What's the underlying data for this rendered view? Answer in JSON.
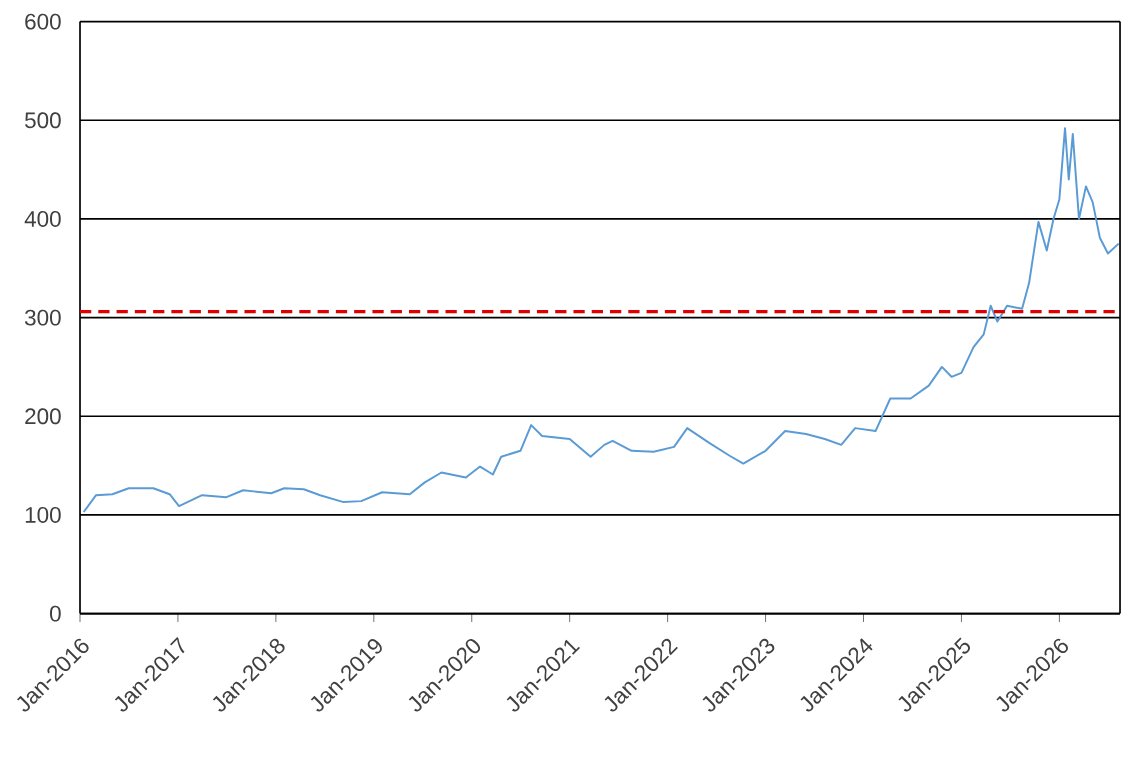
{
  "chart_data": {
    "type": "line",
    "x": [
      "2016-01-15",
      "2016-03-01",
      "2016-05-01",
      "2016-07-01",
      "2016-10-01",
      "2016-12-01",
      "2017-01-05",
      "2017-04-01",
      "2017-07-01",
      "2017-09-01",
      "2017-12-15",
      "2018-02-01",
      "2018-04-15",
      "2018-06-15",
      "2018-09-10",
      "2018-11-15",
      "2019-02-01",
      "2019-05-15",
      "2019-07-10",
      "2019-09-10",
      "2019-12-10",
      "2020-02-01",
      "2020-03-20",
      "2020-04-20",
      "2020-07-01",
      "2020-08-10",
      "2020-09-20",
      "2021-01-01",
      "2021-03-20",
      "2021-05-10",
      "2021-06-10",
      "2021-08-20",
      "2021-11-10",
      "2022-01-25",
      "2022-03-15",
      "2022-06-05",
      "2022-08-20",
      "2022-10-10",
      "2023-01-01",
      "2023-03-15",
      "2023-06-01",
      "2023-08-10",
      "2023-10-10",
      "2023-12-01",
      "2024-02-15",
      "2024-04-10",
      "2024-06-25",
      "2024-09-01",
      "2024-10-20",
      "2024-11-25",
      "2025-01-01",
      "2025-02-15",
      "2025-03-25",
      "2025-04-20",
      "2025-05-15",
      "2025-06-20",
      "2025-08-15",
      "2025-09-10",
      "2025-10-15",
      "2025-11-15",
      "2025-12-10",
      "2026-01-01",
      "2026-01-22",
      "2026-02-05",
      "2026-02-20",
      "2026-03-15",
      "2026-04-10",
      "2026-05-05",
      "2026-06-01",
      "2026-07-01",
      "2026-08-10"
    ],
    "series": [
      {
        "color": "#5b9bd5",
        "values": [
          103,
          120,
          121,
          127,
          127,
          121,
          109,
          120,
          118,
          125,
          122,
          127,
          126,
          120,
          113,
          114,
          123,
          121,
          133,
          143,
          138,
          149,
          141,
          159,
          165,
          191,
          180,
          177,
          159,
          171,
          175,
          165,
          164,
          169,
          188,
          173,
          160,
          152,
          165,
          185,
          182,
          177,
          171,
          188,
          185,
          218,
          218,
          231,
          250,
          240,
          244,
          270,
          283,
          312,
          296,
          312,
          309,
          335,
          397,
          368,
          400,
          420,
          492,
          440,
          486,
          400,
          433,
          417,
          381,
          365,
          375
        ]
      }
    ],
    "xlim": [
      "2016-01-01",
      "2026-08-15"
    ],
    "xticks": [
      {
        "value": "2016-01-01",
        "label": "Jan-2016"
      },
      {
        "value": "2017-01-01",
        "label": "Jan-2017"
      },
      {
        "value": "2018-01-01",
        "label": "Jan-2018"
      },
      {
        "value": "2019-01-01",
        "label": "Jan-2019"
      },
      {
        "value": "2020-01-01",
        "label": "Jan-2020"
      },
      {
        "value": "2021-01-01",
        "label": "Jan-2021"
      },
      {
        "value": "2022-01-01",
        "label": "Jan-2022"
      },
      {
        "value": "2023-01-01",
        "label": "Jan-2023"
      },
      {
        "value": "2024-01-01",
        "label": "Jan-2024"
      },
      {
        "value": "2025-01-01",
        "label": "Jan-2025"
      },
      {
        "value": "2026-01-01",
        "label": "Jan-2026"
      }
    ],
    "ylim": [
      0,
      600
    ],
    "yticks": [
      0,
      100,
      200,
      300,
      400,
      500,
      600
    ],
    "grid": "y",
    "ref_lines": [
      {
        "axis": "y",
        "value": 306,
        "color": "#e00000",
        "line_style": "dashed"
      }
    ]
  }
}
